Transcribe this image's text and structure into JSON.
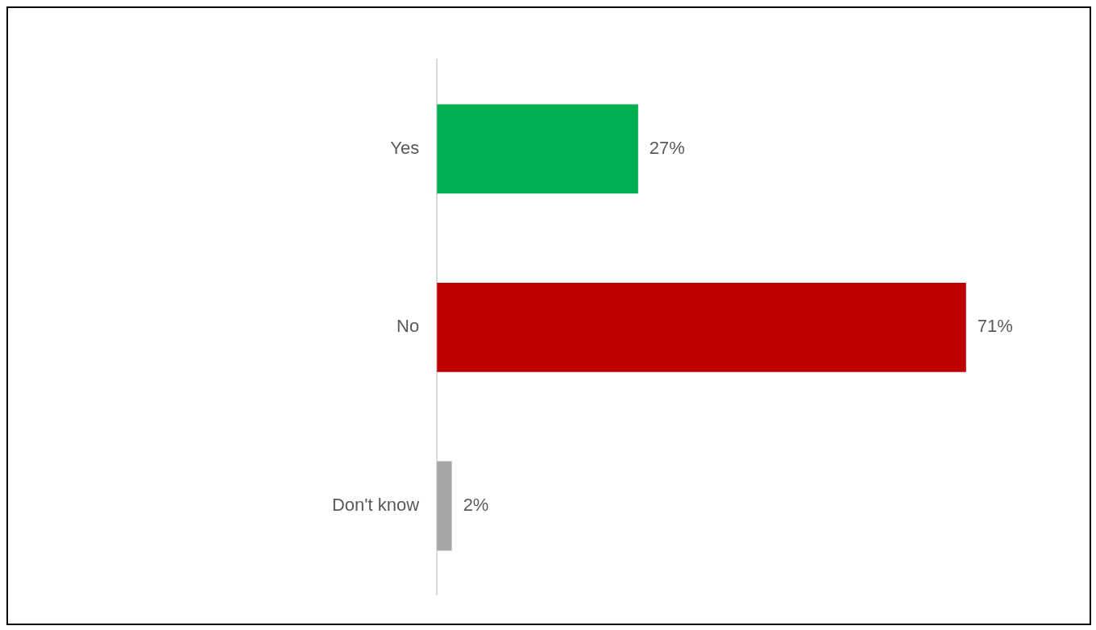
{
  "chart_data": {
    "type": "bar",
    "orientation": "horizontal",
    "categories": [
      "Yes",
      "No",
      "Don't know"
    ],
    "values": [
      27,
      71,
      2
    ],
    "colors": [
      "#00b050",
      "#c00000",
      "#a6a6a6"
    ],
    "value_labels": [
      "27%",
      "71%",
      "2%"
    ],
    "tick_labels": "y"
  }
}
